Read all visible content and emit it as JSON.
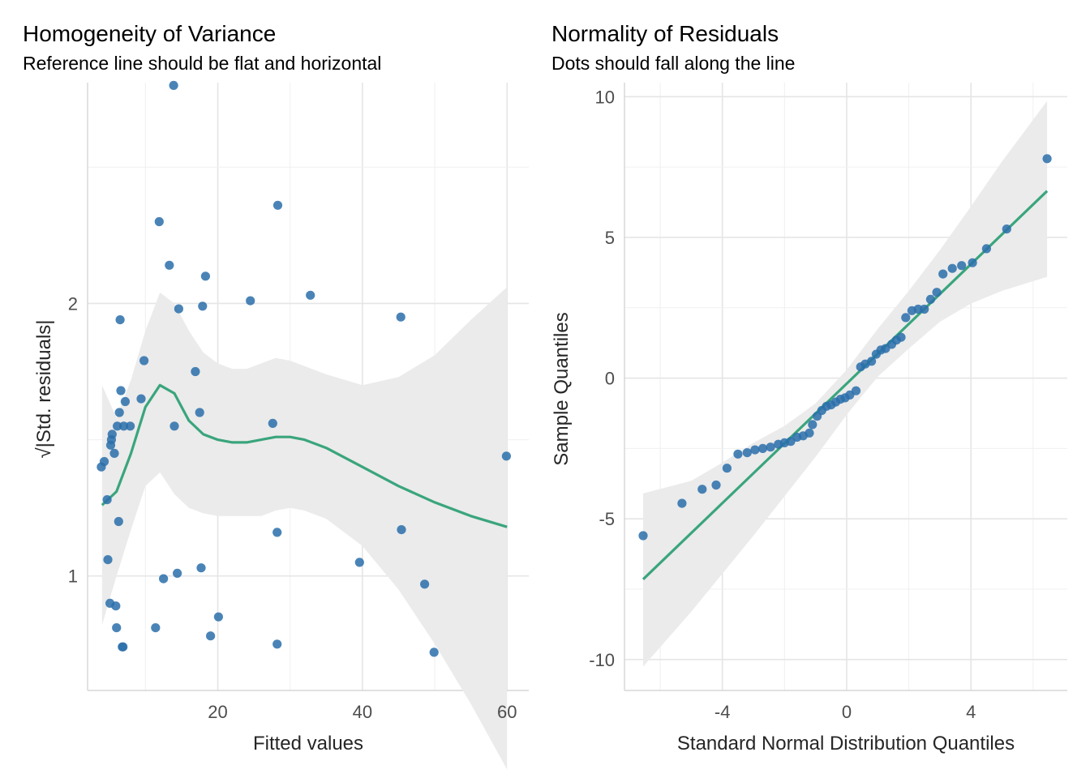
{
  "chart_data": [
    {
      "type": "scatter",
      "title": "Homogeneity of Variance",
      "subtitle": "Reference line should be flat and horizontal",
      "xlabel": "Fitted values",
      "ylabel": "√|Std. residuals|",
      "xlim": [
        2,
        63
      ],
      "ylim": [
        0.58,
        2.81
      ],
      "xticks": [
        20,
        40,
        60
      ],
      "yticks": [
        1,
        2
      ],
      "grid": true,
      "colors": {
        "points": "#2a6faa",
        "line": "#3aa57d",
        "band": "#ebebeb"
      },
      "points": [
        [
          3.9,
          1.4
        ],
        [
          4.3,
          1.42
        ],
        [
          4.7,
          1.28
        ],
        [
          4.8,
          1.06
        ],
        [
          5.1,
          0.9
        ],
        [
          5.2,
          1.48
        ],
        [
          5.3,
          1.5
        ],
        [
          5.4,
          1.52
        ],
        [
          5.7,
          1.45
        ],
        [
          5.9,
          0.89
        ],
        [
          6.0,
          0.81
        ],
        [
          6.1,
          1.55
        ],
        [
          6.3,
          1.2
        ],
        [
          6.4,
          1.6
        ],
        [
          6.5,
          1.94
        ],
        [
          6.6,
          1.68
        ],
        [
          6.8,
          0.74
        ],
        [
          6.9,
          0.74
        ],
        [
          7.0,
          1.55
        ],
        [
          7.2,
          1.64
        ],
        [
          7.9,
          1.55
        ],
        [
          9.4,
          1.65
        ],
        [
          9.8,
          1.79
        ],
        [
          11.4,
          0.81
        ],
        [
          11.9,
          2.3
        ],
        [
          12.5,
          0.99
        ],
        [
          13.3,
          2.14
        ],
        [
          13.9,
          2.8
        ],
        [
          14.0,
          1.55
        ],
        [
          14.4,
          1.01
        ],
        [
          14.6,
          1.98
        ],
        [
          16.9,
          1.75
        ],
        [
          17.5,
          1.6
        ],
        [
          17.7,
          1.03
        ],
        [
          17.9,
          1.99
        ],
        [
          18.3,
          2.1
        ],
        [
          19.0,
          0.78
        ],
        [
          20.1,
          0.85
        ],
        [
          24.5,
          2.01
        ],
        [
          27.6,
          1.56
        ],
        [
          28.2,
          0.75
        ],
        [
          28.2,
          1.16
        ],
        [
          28.3,
          2.36
        ],
        [
          32.8,
          2.03
        ],
        [
          39.6,
          1.05
        ],
        [
          45.3,
          1.95
        ],
        [
          45.4,
          1.17
        ],
        [
          48.6,
          0.97
        ],
        [
          49.9,
          0.72
        ],
        [
          59.9,
          1.44
        ]
      ],
      "smooth_line": [
        [
          4.0,
          1.26
        ],
        [
          6.0,
          1.31
        ],
        [
          8.0,
          1.45
        ],
        [
          10.0,
          1.62
        ],
        [
          12.0,
          1.7
        ],
        [
          14.0,
          1.67
        ],
        [
          16.0,
          1.57
        ],
        [
          18.0,
          1.52
        ],
        [
          20.0,
          1.5
        ],
        [
          22.0,
          1.49
        ],
        [
          24.0,
          1.49
        ],
        [
          26.0,
          1.5
        ],
        [
          28.0,
          1.51
        ],
        [
          30.0,
          1.51
        ],
        [
          32.0,
          1.5
        ],
        [
          35.0,
          1.47
        ],
        [
          40.0,
          1.4
        ],
        [
          45.0,
          1.33
        ],
        [
          50.0,
          1.27
        ],
        [
          55.0,
          1.22
        ],
        [
          60.0,
          1.18
        ]
      ],
      "smooth_band": [
        [
          4.0,
          0.82,
          1.7
        ],
        [
          6.0,
          1.0,
          1.58
        ],
        [
          8.0,
          1.17,
          1.72
        ],
        [
          10.0,
          1.33,
          1.9
        ],
        [
          12.0,
          1.38,
          2.04
        ],
        [
          14.0,
          1.3,
          2.0
        ],
        [
          16.0,
          1.25,
          1.9
        ],
        [
          18.0,
          1.23,
          1.82
        ],
        [
          20.0,
          1.22,
          1.78
        ],
        [
          22.0,
          1.22,
          1.76
        ],
        [
          24.0,
          1.22,
          1.76
        ],
        [
          26.0,
          1.22,
          1.78
        ],
        [
          28.0,
          1.24,
          1.8
        ],
        [
          30.0,
          1.25,
          1.79
        ],
        [
          32.0,
          1.24,
          1.77
        ],
        [
          35.0,
          1.21,
          1.74
        ],
        [
          40.0,
          1.11,
          1.7
        ],
        [
          45.0,
          0.95,
          1.73
        ],
        [
          50.0,
          0.75,
          1.81
        ],
        [
          55.0,
          0.53,
          1.94
        ],
        [
          60.0,
          0.29,
          2.06
        ]
      ]
    },
    {
      "type": "scatter",
      "title": "Normality of Residuals",
      "subtitle": "Dots should fall along the line",
      "xlabel": "Standard Normal Distribution Quantiles",
      "ylabel": "Sample Quantiles",
      "xlim": [
        -7.15,
        7.1
      ],
      "ylim": [
        -11.1,
        10.5
      ],
      "xticks": [
        -4,
        0,
        4
      ],
      "yticks": [
        -10,
        -5,
        0,
        5,
        10
      ],
      "grid": true,
      "colors": {
        "points": "#2a6faa",
        "line": "#3aa57d",
        "band": "#ebebeb"
      },
      "points": [
        [
          -6.55,
          -5.6
        ],
        [
          -5.3,
          -4.45
        ],
        [
          -4.65,
          -3.95
        ],
        [
          -4.2,
          -3.8
        ],
        [
          -3.85,
          -3.2
        ],
        [
          -3.5,
          -2.7
        ],
        [
          -3.2,
          -2.65
        ],
        [
          -2.95,
          -2.55
        ],
        [
          -2.7,
          -2.5
        ],
        [
          -2.45,
          -2.45
        ],
        [
          -2.2,
          -2.35
        ],
        [
          -2.0,
          -2.3
        ],
        [
          -1.8,
          -2.25
        ],
        [
          -1.6,
          -2.1
        ],
        [
          -1.4,
          -2.05
        ],
        [
          -1.2,
          -1.95
        ],
        [
          -1.1,
          -1.65
        ],
        [
          -0.95,
          -1.35
        ],
        [
          -0.8,
          -1.15
        ],
        [
          -0.65,
          -1.0
        ],
        [
          -0.5,
          -0.95
        ],
        [
          -0.35,
          -0.85
        ],
        [
          -0.2,
          -0.75
        ],
        [
          -0.05,
          -0.7
        ],
        [
          0.1,
          -0.6
        ],
        [
          0.3,
          -0.45
        ],
        [
          0.45,
          0.4
        ],
        [
          0.6,
          0.5
        ],
        [
          0.8,
          0.6
        ],
        [
          0.95,
          0.85
        ],
        [
          1.1,
          1.0
        ],
        [
          1.25,
          1.05
        ],
        [
          1.45,
          1.2
        ],
        [
          1.6,
          1.35
        ],
        [
          1.75,
          1.45
        ],
        [
          1.9,
          2.15
        ],
        [
          2.1,
          2.4
        ],
        [
          2.3,
          2.45
        ],
        [
          2.5,
          2.45
        ],
        [
          2.7,
          2.8
        ],
        [
          2.9,
          3.05
        ],
        [
          3.1,
          3.7
        ],
        [
          3.4,
          3.9
        ],
        [
          3.7,
          4.0
        ],
        [
          4.05,
          4.1
        ],
        [
          4.5,
          4.6
        ],
        [
          5.15,
          5.3
        ],
        [
          6.45,
          7.8
        ]
      ],
      "reference_line": [
        [
          -6.55,
          -7.15
        ],
        [
          6.45,
          6.65
        ]
      ],
      "reference_band": [
        [
          -6.55,
          -10.25,
          -4.1
        ],
        [
          -5.0,
          -8.3,
          -3.65
        ],
        [
          -4.0,
          -6.95,
          -3.0
        ],
        [
          -3.0,
          -5.6,
          -2.3
        ],
        [
          -2.0,
          -4.2,
          -1.7
        ],
        [
          -1.0,
          -2.8,
          -0.9
        ],
        [
          0.0,
          -1.3,
          0.3
        ],
        [
          1.0,
          0.05,
          1.75
        ],
        [
          2.0,
          1.05,
          3.1
        ],
        [
          3.0,
          2.0,
          4.55
        ],
        [
          4.0,
          2.65,
          6.1
        ],
        [
          5.0,
          3.1,
          7.7
        ],
        [
          6.45,
          3.6,
          9.85
        ]
      ]
    }
  ]
}
